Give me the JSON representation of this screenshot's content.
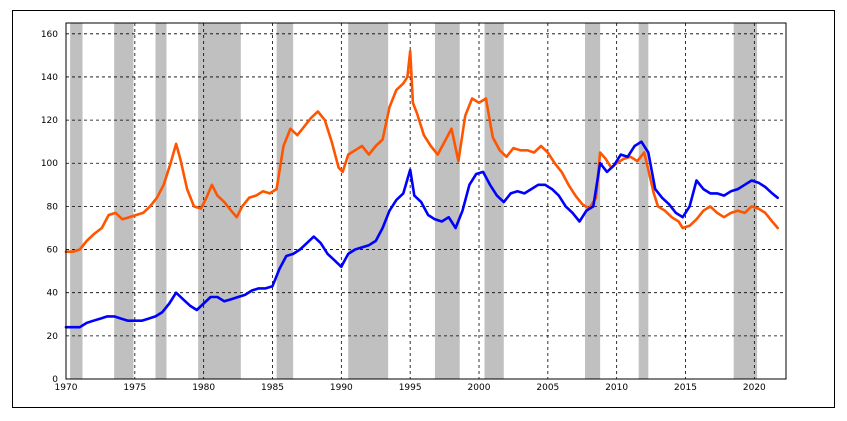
{
  "chart_data": {
    "type": "line",
    "title": "",
    "xlabel": "",
    "ylabel": "",
    "xlim": [
      1970,
      2022.3
    ],
    "ylim": [
      0,
      165
    ],
    "grid": true,
    "x_ticks": [
      1970,
      1975,
      1980,
      1985,
      1990,
      1995,
      2000,
      2005,
      2010,
      2015,
      2020
    ],
    "y_ticks": [
      0,
      20,
      40,
      60,
      80,
      100,
      120,
      140,
      160
    ],
    "shaded_periods": [
      [
        1970.3,
        1971.2
      ],
      [
        1973.5,
        1974.9
      ],
      [
        1976.5,
        1977.3
      ],
      [
        1979.6,
        1982.7
      ],
      [
        1985.3,
        1986.5
      ],
      [
        1990.5,
        1993.4
      ],
      [
        1996.8,
        1998.6
      ],
      [
        2000.4,
        2001.8
      ],
      [
        2007.7,
        2008.8
      ],
      [
        2011.6,
        2012.3
      ],
      [
        2018.5,
        2020.2
      ]
    ],
    "series": [
      {
        "color": "#ff5500",
        "points": [
          [
            1970.0,
            59
          ],
          [
            1970.5,
            59
          ],
          [
            1971.0,
            60
          ],
          [
            1971.5,
            64
          ],
          [
            1972.0,
            67
          ],
          [
            1972.6,
            70
          ],
          [
            1973.1,
            76
          ],
          [
            1973.6,
            77
          ],
          [
            1974.1,
            74
          ],
          [
            1974.6,
            75
          ],
          [
            1975.1,
            76
          ],
          [
            1975.6,
            77
          ],
          [
            1976.1,
            80
          ],
          [
            1976.6,
            84
          ],
          [
            1977.1,
            90
          ],
          [
            1977.6,
            100
          ],
          [
            1978.0,
            109
          ],
          [
            1978.3,
            102
          ],
          [
            1978.8,
            88
          ],
          [
            1979.3,
            80
          ],
          [
            1979.8,
            79
          ],
          [
            1980.2,
            84
          ],
          [
            1980.6,
            90
          ],
          [
            1981.0,
            85
          ],
          [
            1981.5,
            82
          ],
          [
            1982.0,
            78
          ],
          [
            1982.4,
            75
          ],
          [
            1982.8,
            80
          ],
          [
            1983.3,
            84
          ],
          [
            1983.8,
            85
          ],
          [
            1984.3,
            87
          ],
          [
            1984.8,
            86
          ],
          [
            1985.3,
            88
          ],
          [
            1985.8,
            108
          ],
          [
            1986.3,
            116
          ],
          [
            1986.8,
            113
          ],
          [
            1987.3,
            117
          ],
          [
            1987.8,
            121
          ],
          [
            1988.3,
            124
          ],
          [
            1988.8,
            120
          ],
          [
            1989.3,
            110
          ],
          [
            1989.8,
            98
          ],
          [
            1990.1,
            96
          ],
          [
            1990.5,
            104
          ],
          [
            1991.0,
            106
          ],
          [
            1991.5,
            108
          ],
          [
            1992.0,
            104
          ],
          [
            1992.5,
            108
          ],
          [
            1993.0,
            111
          ],
          [
            1993.5,
            126
          ],
          [
            1994.0,
            134
          ],
          [
            1994.5,
            137
          ],
          [
            1994.8,
            140
          ],
          [
            1995.0,
            152
          ],
          [
            1995.2,
            128
          ],
          [
            1995.5,
            123
          ],
          [
            1996.0,
            113
          ],
          [
            1996.5,
            108
          ],
          [
            1997.0,
            104
          ],
          [
            1997.5,
            110
          ],
          [
            1998.0,
            116
          ],
          [
            1998.5,
            101
          ],
          [
            1999.0,
            122
          ],
          [
            1999.5,
            130
          ],
          [
            2000.0,
            128
          ],
          [
            2000.5,
            130
          ],
          [
            2001.0,
            112
          ],
          [
            2001.5,
            106
          ],
          [
            2002.0,
            103
          ],
          [
            2002.5,
            107
          ],
          [
            2003.0,
            106
          ],
          [
            2003.5,
            106
          ],
          [
            2004.0,
            105
          ],
          [
            2004.5,
            108
          ],
          [
            2005.0,
            105
          ],
          [
            2005.5,
            100
          ],
          [
            2006.0,
            96
          ],
          [
            2006.5,
            90
          ],
          [
            2007.0,
            85
          ],
          [
            2007.5,
            81
          ],
          [
            2008.0,
            79
          ],
          [
            2008.5,
            84
          ],
          [
            2008.8,
            105
          ],
          [
            2009.2,
            102
          ],
          [
            2009.6,
            98
          ],
          [
            2010.0,
            100
          ],
          [
            2010.5,
            102
          ],
          [
            2011.0,
            103
          ],
          [
            2011.5,
            101
          ],
          [
            2012.0,
            105
          ],
          [
            2012.3,
            97
          ],
          [
            2012.7,
            86
          ],
          [
            2013.0,
            80
          ],
          [
            2013.5,
            78
          ],
          [
            2014.0,
            75
          ],
          [
            2014.5,
            73
          ],
          [
            2014.8,
            70
          ],
          [
            2015.3,
            71
          ],
          [
            2015.8,
            74
          ],
          [
            2016.3,
            78
          ],
          [
            2016.8,
            80
          ],
          [
            2017.3,
            77
          ],
          [
            2017.8,
            75
          ],
          [
            2018.3,
            77
          ],
          [
            2018.8,
            78
          ],
          [
            2019.3,
            77
          ],
          [
            2019.8,
            80
          ],
          [
            2020.3,
            79
          ],
          [
            2020.8,
            77
          ],
          [
            2021.3,
            73
          ],
          [
            2021.7,
            70
          ]
        ]
      },
      {
        "color": "#0000ff",
        "points": [
          [
            1970.0,
            24
          ],
          [
            1970.5,
            24
          ],
          [
            1971.0,
            24
          ],
          [
            1971.5,
            26
          ],
          [
            1972.0,
            27
          ],
          [
            1972.5,
            28
          ],
          [
            1973.0,
            29
          ],
          [
            1973.5,
            29
          ],
          [
            1974.0,
            28
          ],
          [
            1974.5,
            27
          ],
          [
            1975.0,
            27
          ],
          [
            1975.5,
            27
          ],
          [
            1976.0,
            28
          ],
          [
            1976.5,
            29
          ],
          [
            1977.0,
            31
          ],
          [
            1977.5,
            35
          ],
          [
            1978.0,
            40
          ],
          [
            1978.5,
            37
          ],
          [
            1979.0,
            34
          ],
          [
            1979.5,
            32
          ],
          [
            1980.0,
            35
          ],
          [
            1980.5,
            38
          ],
          [
            1981.0,
            38
          ],
          [
            1981.5,
            36
          ],
          [
            1982.0,
            37
          ],
          [
            1982.5,
            38
          ],
          [
            1983.0,
            39
          ],
          [
            1983.5,
            41
          ],
          [
            1984.0,
            42
          ],
          [
            1984.5,
            42
          ],
          [
            1985.0,
            43
          ],
          [
            1985.5,
            51
          ],
          [
            1986.0,
            57
          ],
          [
            1986.5,
            58
          ],
          [
            1987.0,
            60
          ],
          [
            1987.5,
            63
          ],
          [
            1988.0,
            66
          ],
          [
            1988.5,
            63
          ],
          [
            1989.0,
            58
          ],
          [
            1989.5,
            55
          ],
          [
            1990.0,
            52
          ],
          [
            1990.5,
            58
          ],
          [
            1991.0,
            60
          ],
          [
            1991.5,
            61
          ],
          [
            1992.0,
            62
          ],
          [
            1992.5,
            64
          ],
          [
            1993.0,
            70
          ],
          [
            1993.5,
            78
          ],
          [
            1994.0,
            83
          ],
          [
            1994.5,
            86
          ],
          [
            1995.0,
            97
          ],
          [
            1995.3,
            85
          ],
          [
            1995.8,
            82
          ],
          [
            1996.3,
            76
          ],
          [
            1996.8,
            74
          ],
          [
            1997.3,
            73
          ],
          [
            1997.8,
            75
          ],
          [
            1998.3,
            70
          ],
          [
            1998.8,
            78
          ],
          [
            1999.3,
            90
          ],
          [
            1999.8,
            95
          ],
          [
            2000.3,
            96
          ],
          [
            2000.8,
            90
          ],
          [
            2001.3,
            85
          ],
          [
            2001.8,
            82
          ],
          [
            2002.3,
            86
          ],
          [
            2002.8,
            87
          ],
          [
            2003.3,
            86
          ],
          [
            2003.8,
            88
          ],
          [
            2004.3,
            90
          ],
          [
            2004.8,
            90
          ],
          [
            2005.3,
            88
          ],
          [
            2005.8,
            85
          ],
          [
            2006.3,
            80
          ],
          [
            2006.8,
            77
          ],
          [
            2007.3,
            73
          ],
          [
            2007.8,
            78
          ],
          [
            2008.3,
            80
          ],
          [
            2008.8,
            100
          ],
          [
            2009.3,
            96
          ],
          [
            2009.8,
            99
          ],
          [
            2010.3,
            104
          ],
          [
            2010.8,
            103
          ],
          [
            2011.3,
            108
          ],
          [
            2011.8,
            110
          ],
          [
            2012.3,
            105
          ],
          [
            2012.8,
            88
          ],
          [
            2013.3,
            84
          ],
          [
            2013.8,
            81
          ],
          [
            2014.3,
            77
          ],
          [
            2014.8,
            75
          ],
          [
            2015.3,
            80
          ],
          [
            2015.8,
            92
          ],
          [
            2016.3,
            88
          ],
          [
            2016.8,
            86
          ],
          [
            2017.3,
            86
          ],
          [
            2017.8,
            85
          ],
          [
            2018.3,
            87
          ],
          [
            2018.8,
            88
          ],
          [
            2019.3,
            90
          ],
          [
            2019.8,
            92
          ],
          [
            2020.3,
            91
          ],
          [
            2020.8,
            89
          ],
          [
            2021.3,
            86
          ],
          [
            2021.7,
            84
          ]
        ]
      }
    ]
  }
}
